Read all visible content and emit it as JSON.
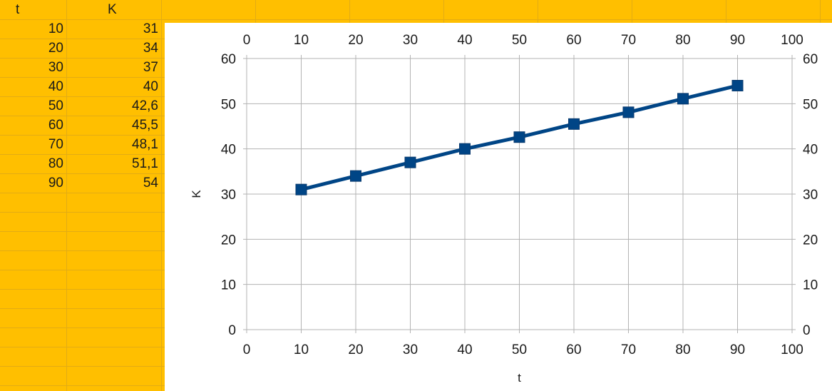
{
  "sheet": {
    "headers": [
      "t",
      "K"
    ],
    "rows": [
      [
        "10",
        "31"
      ],
      [
        "20",
        "34"
      ],
      [
        "30",
        "37"
      ],
      [
        "40",
        "40"
      ],
      [
        "50",
        "42,6"
      ],
      [
        "60",
        "45,5"
      ],
      [
        "70",
        "48,1"
      ],
      [
        "80",
        "51,1"
      ],
      [
        "90",
        "54"
      ]
    ]
  },
  "chart_data": {
    "type": "line",
    "x": [
      10,
      20,
      30,
      40,
      50,
      60,
      70,
      80,
      90
    ],
    "series": [
      {
        "values": [
          31,
          34,
          37,
          40,
          42.6,
          45.5,
          48.1,
          51.1,
          54
        ]
      }
    ],
    "xlabel": "t",
    "ylabel": "K",
    "xlim": [
      0,
      100
    ],
    "ylim": [
      0,
      60
    ],
    "x_ticks": [
      "0",
      "10",
      "20",
      "30",
      "40",
      "50",
      "60",
      "70",
      "80",
      "90",
      "100"
    ],
    "y_ticks": [
      "0",
      "10",
      "20",
      "30",
      "40",
      "50",
      "60"
    ],
    "secondary_axes": true,
    "grid": true,
    "marker": "square",
    "color": "#004586"
  },
  "colors": {
    "sheet_background": "#ffbf00",
    "gridline": "#b3b3b3",
    "series": "#004586"
  }
}
